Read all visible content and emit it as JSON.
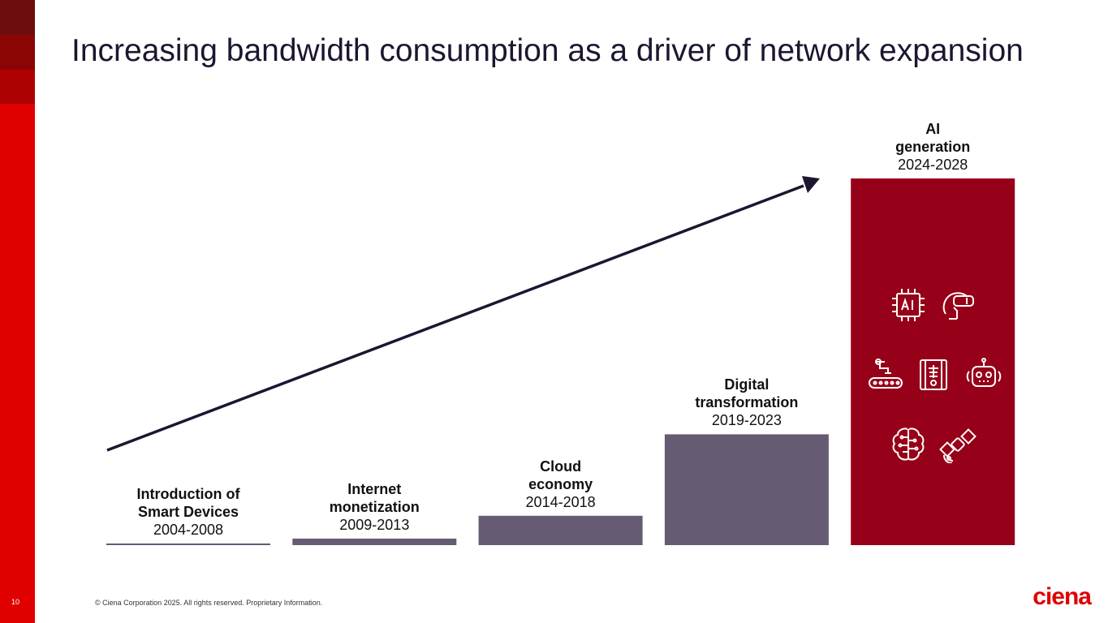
{
  "slide": {
    "title": "Increasing bandwidth consumption as a driver of network expansion",
    "page_number": "10",
    "footer": "© Ciena Corporation 2025. All rights reserved. Proprietary Information.",
    "logo_text": "ciena"
  },
  "colors": {
    "accent_red": "#e00000",
    "ai_bar": "#960019",
    "bar_gray": "#655b72",
    "arrow": "#1e1530"
  },
  "icons": [
    "ai-chip-icon",
    "vr-headset-icon",
    "conveyor-robot-arm-icon",
    "xray-scan-icon",
    "robot-head-icon",
    "brain-circuit-icon",
    "satellite-icon"
  ],
  "chart_data": {
    "type": "bar",
    "title": "",
    "xlabel": "",
    "ylabel": "",
    "y_axis_shown": false,
    "grid": false,
    "categories": [
      "Introduction of Smart Devices",
      "Internet monetization",
      "Cloud economy",
      "Digital transformation",
      "AI generation"
    ],
    "bars": [
      {
        "name": "Introduction of\nSmart Devices",
        "years": "2004-2008",
        "value": 1
      },
      {
        "name": "Internet\nmonetization",
        "years": "2009-2013",
        "value": 4
      },
      {
        "name": "Cloud\neconomy",
        "years": "2014-2018",
        "value": 18
      },
      {
        "name": "Digital\ntransformation",
        "years": "2019-2023",
        "value": 68
      },
      {
        "name": "AI\ngeneration",
        "years": "2024-2028",
        "value": 225
      }
    ],
    "ylim": [
      0,
      225
    ],
    "trend_arrow": true
  }
}
